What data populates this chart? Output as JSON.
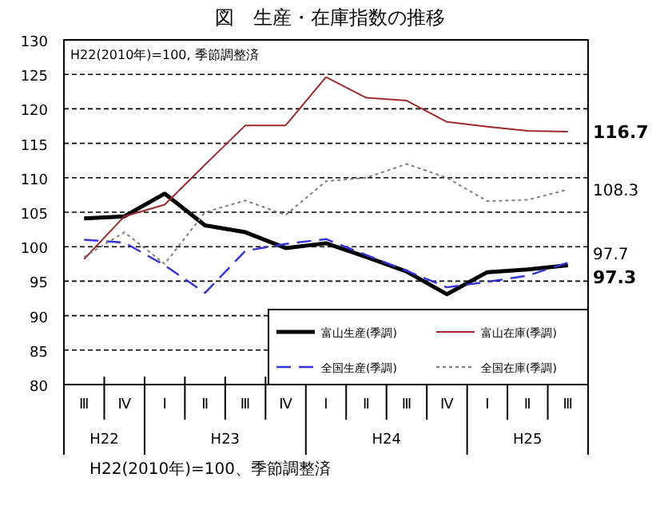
{
  "chart_data": {
    "type": "line",
    "title": "図　生産・在庫指数の推移",
    "categories": [
      "Ⅲ",
      "Ⅳ",
      "Ⅰ",
      "Ⅱ",
      "Ⅲ",
      "Ⅳ",
      "Ⅰ",
      "Ⅱ",
      "Ⅲ",
      "Ⅳ",
      "Ⅰ",
      "Ⅱ",
      "Ⅲ"
    ],
    "series": [
      {
        "name": "富山生産(季調)",
        "color": "#000000",
        "line_style": "solid",
        "values": [
          104.1,
          104.4,
          107.7,
          103.1,
          102.1,
          99.8,
          100.5,
          98.5,
          96.4,
          93.1,
          96.3,
          96.7,
          97.3
        ],
        "value_labels": [
          null,
          null,
          null,
          null,
          null,
          null,
          null,
          null,
          null,
          null,
          null,
          null,
          "97.3"
        ]
      },
      {
        "name": "富山在庫(季調)",
        "color": "#a0282d",
        "line_style": "solid",
        "values": [
          98.2,
          104.4,
          106.1,
          111.9,
          117.6,
          117.6,
          124.6,
          121.6,
          121.2,
          118.1,
          117.4,
          116.8,
          116.7
        ],
        "value_labels": [
          null,
          null,
          null,
          null,
          null,
          null,
          null,
          null,
          null,
          null,
          null,
          null,
          "116.7"
        ]
      },
      {
        "name": "全国生産(季調)",
        "color": "#3333dd",
        "line_style": "dashed",
        "values": [
          101.0,
          100.6,
          97.3,
          93.3,
          99.4,
          100.4,
          101.1,
          98.8,
          96.5,
          94.1,
          94.9,
          95.8,
          97.7
        ],
        "value_labels": [
          null,
          null,
          null,
          null,
          null,
          null,
          null,
          null,
          null,
          null,
          null,
          null,
          "97.7"
        ]
      },
      {
        "name": "全国在庫(季調)",
        "color": "#808080",
        "line_style": "dotted",
        "values": [
          98.5,
          102.1,
          97.5,
          105.0,
          106.7,
          104.6,
          109.5,
          110.0,
          112.0,
          110.0,
          106.6,
          106.8,
          108.3
        ],
        "value_labels": [
          null,
          null,
          null,
          null,
          null,
          null,
          null,
          null,
          null,
          null,
          null,
          null,
          "108.3"
        ]
      }
    ],
    "ylim": [
      80,
      130
    ],
    "yticks": [
      80,
      85,
      90,
      95,
      100,
      105,
      110,
      115,
      120,
      125,
      130
    ],
    "grid": "y",
    "legend": "bottom right",
    "marker": "none",
    "annotations": [
      "H22(2010年)=100, 季節調整済",
      "H22",
      "H23",
      "H24",
      "H25",
      "H22(2010年)=100、季節調整済"
    ]
  }
}
